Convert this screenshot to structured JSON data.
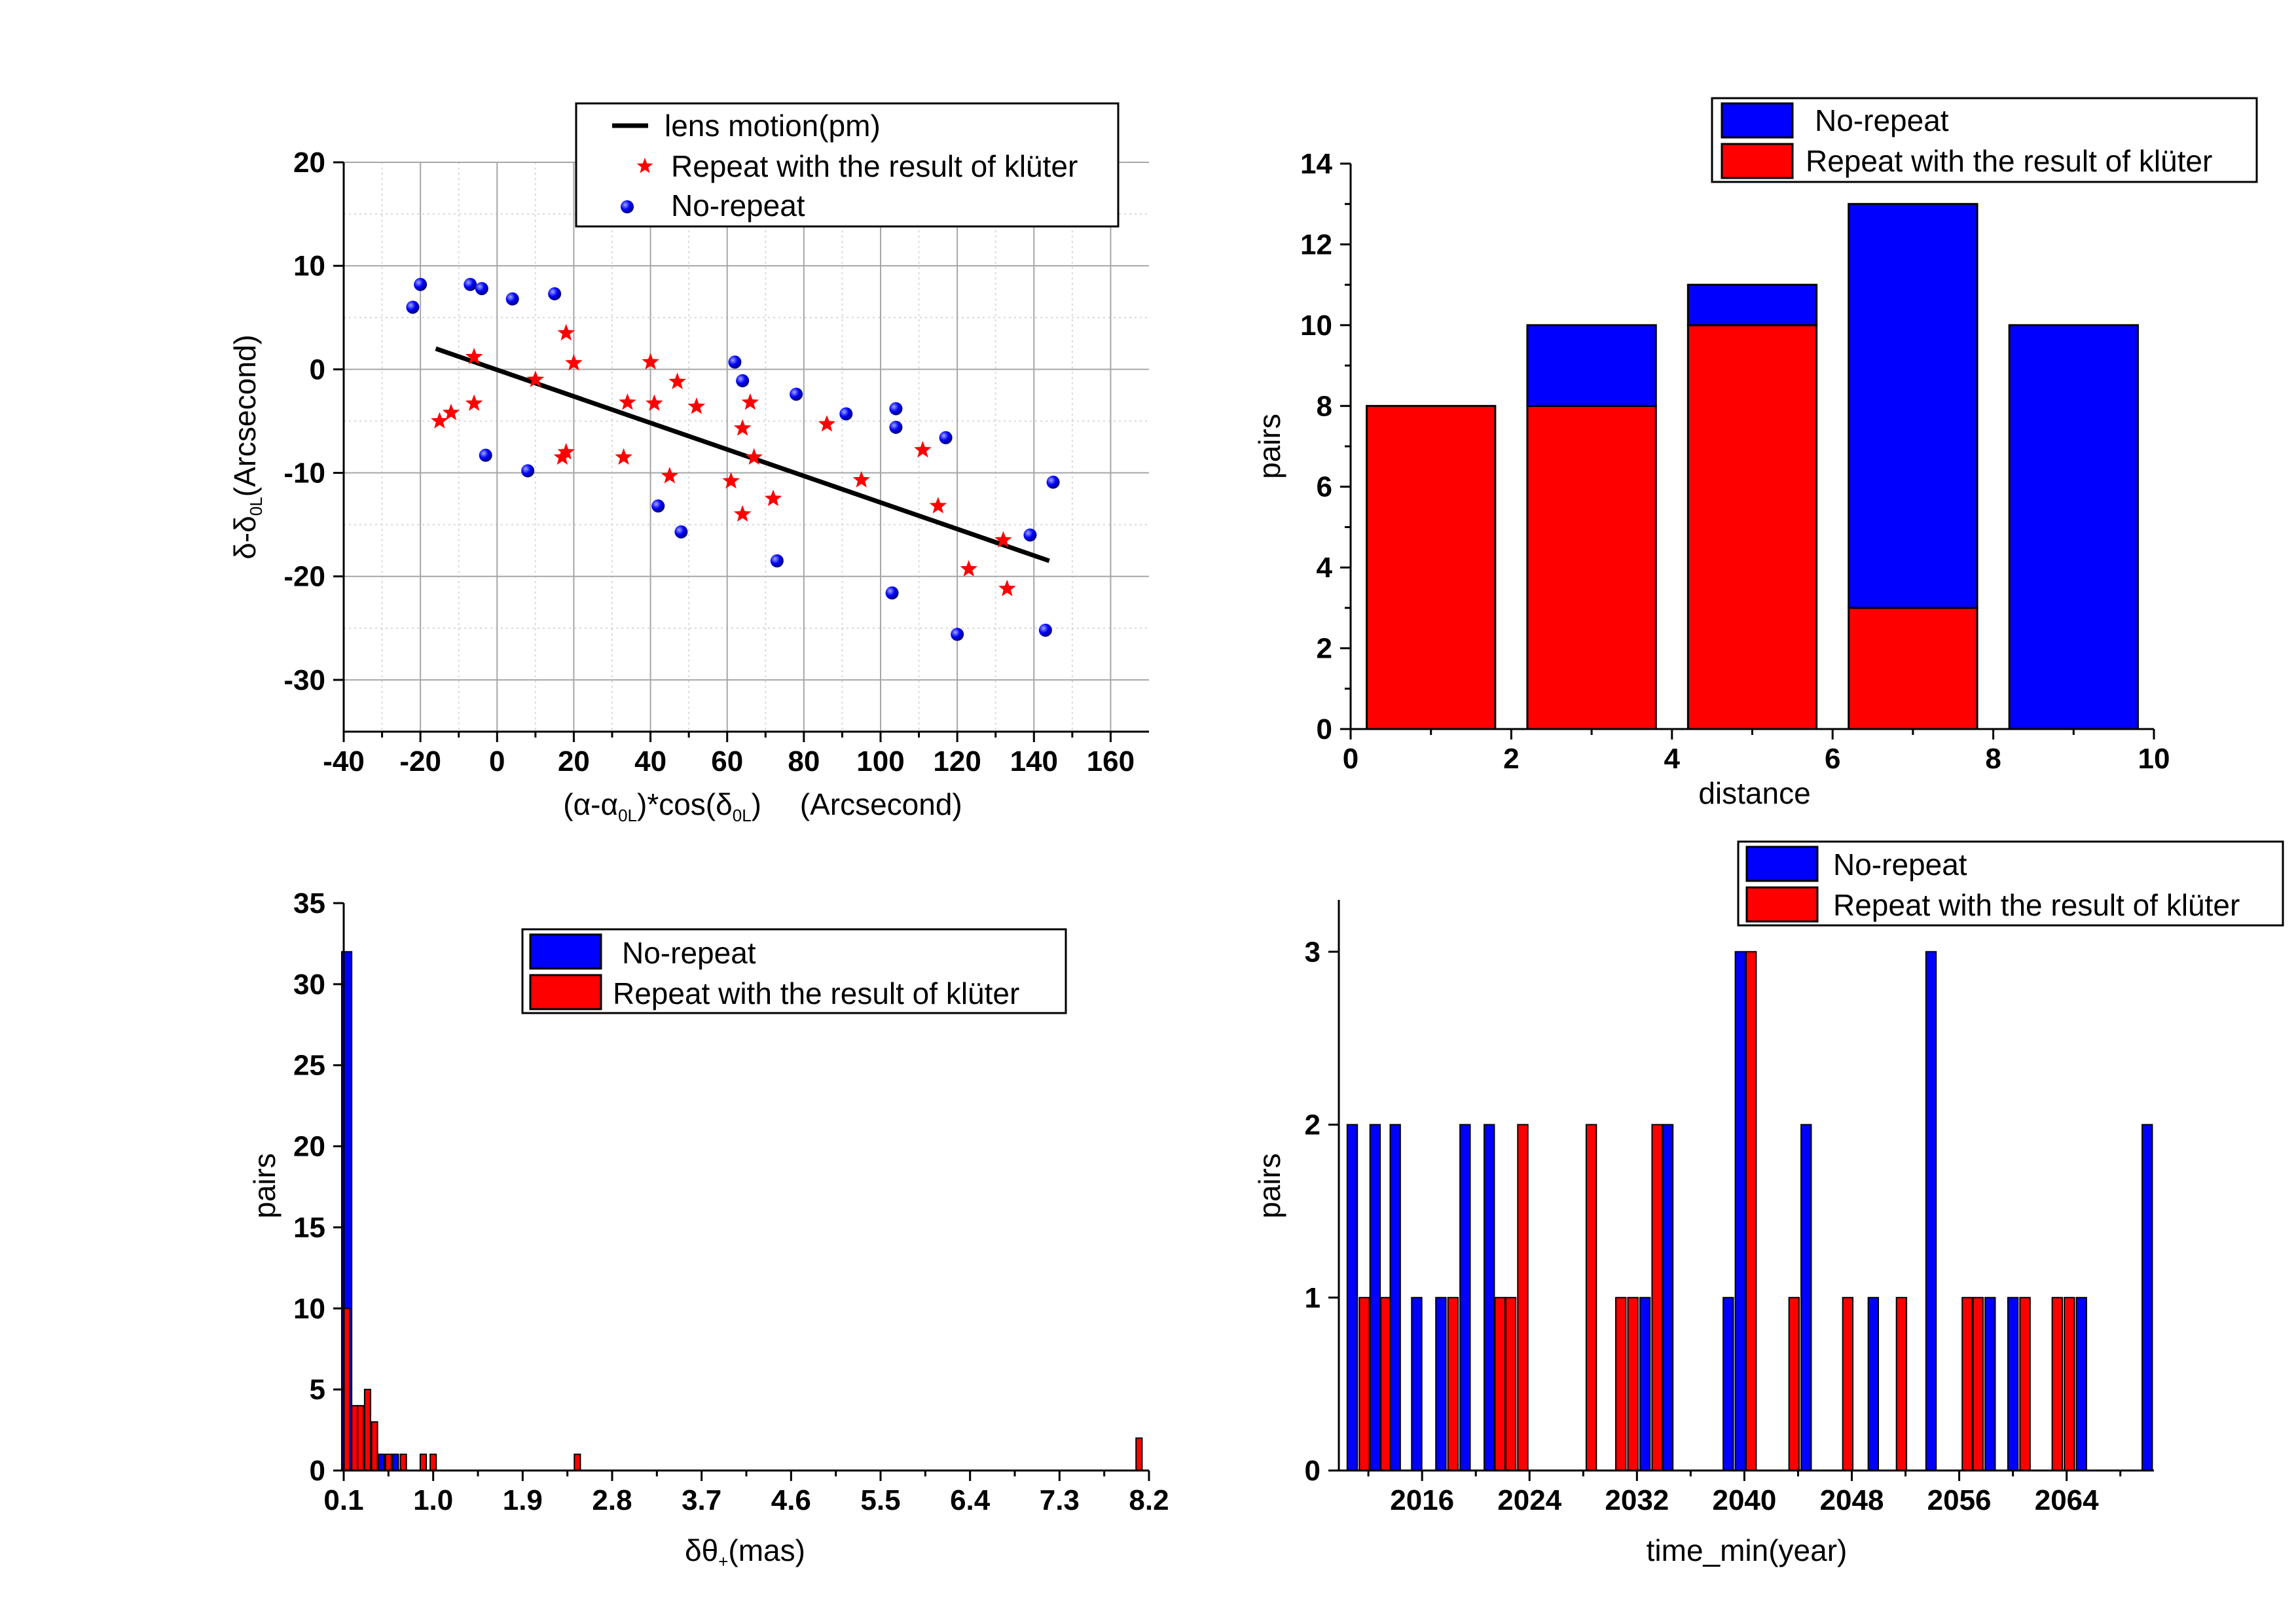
{
  "figure": {
    "panel_count": 4
  },
  "chart_data": [
    {
      "id": "scatter",
      "type": "scatter",
      "xlabel_parts": [
        "(α-α",
        "0L",
        ")*cos(δ",
        "0L",
        ")",
        "(Arcsecond)"
      ],
      "ylabel_parts": [
        "δ-δ",
        "0L",
        "(Arcsecond)"
      ],
      "xlim": [
        -40,
        170
      ],
      "ylim": [
        -35,
        20
      ],
      "xticks": [
        -40,
        -20,
        0,
        20,
        40,
        60,
        80,
        100,
        120,
        140,
        160
      ],
      "yticks": [
        20,
        10,
        0,
        -10,
        -20,
        -30
      ],
      "grid": true,
      "legend_position": "top-right",
      "legend": [
        "lens motion(pm)",
        "Repeat with the result of klüter",
        "No-repeat"
      ],
      "line": {
        "name": "lens motion(pm)",
        "x": [
          -16,
          144
        ],
        "y": [
          2,
          -18.5
        ],
        "color": "#000000"
      },
      "series": [
        {
          "name": "Repeat with the result of klüter",
          "marker": "star",
          "color": "#ff0000",
          "points": [
            [
              -15,
              -5
            ],
            [
              -12,
              -4.2
            ],
            [
              -6,
              1.2
            ],
            [
              -6,
              -3.3
            ],
            [
              10,
              -1
            ],
            [
              17,
              -8.5
            ],
            [
              18,
              3.5
            ],
            [
              18,
              -8
            ],
            [
              20,
              0.6
            ],
            [
              33,
              -8.5
            ],
            [
              34,
              -3.2
            ],
            [
              40,
              0.7
            ],
            [
              41,
              -3.3
            ],
            [
              45,
              -10.3
            ],
            [
              47,
              -1.2
            ],
            [
              52,
              -3.6
            ],
            [
              61,
              -10.8
            ],
            [
              64,
              -5.7
            ],
            [
              64,
              -14
            ],
            [
              66,
              -3.2
            ],
            [
              67,
              -8.5
            ],
            [
              72,
              -12.5
            ],
            [
              86,
              -5.3
            ],
            [
              95,
              -10.7
            ],
            [
              111,
              -7.8
            ],
            [
              115,
              -13.2
            ],
            [
              123,
              -19.3
            ],
            [
              132,
              -16.5
            ],
            [
              133,
              -21.2
            ]
          ]
        },
        {
          "name": "No-repeat",
          "marker": "sphere",
          "color": "#0000ff",
          "points": [
            [
              -22,
              6
            ],
            [
              -20,
              8.2
            ],
            [
              -7,
              8.2
            ],
            [
              -4,
              7.8
            ],
            [
              -3,
              -8.3
            ],
            [
              4,
              6.8
            ],
            [
              8,
              -9.8
            ],
            [
              15,
              7.3
            ],
            [
              42,
              -13.2
            ],
            [
              48,
              -15.7
            ],
            [
              62,
              0.7
            ],
            [
              64,
              -1.1
            ],
            [
              73,
              -18.5
            ],
            [
              78,
              -2.4
            ],
            [
              91,
              -4.3
            ],
            [
              103,
              -21.6
            ],
            [
              104,
              -3.8
            ],
            [
              104,
              -5.6
            ],
            [
              117,
              -6.6
            ],
            [
              120,
              -25.6
            ],
            [
              139,
              -16
            ],
            [
              143,
              -25.2
            ],
            [
              145,
              -10.9
            ]
          ]
        }
      ]
    },
    {
      "id": "distance",
      "type": "bar",
      "stacked": true,
      "xlabel": "distance",
      "ylabel": "pairs",
      "xlim": [
        0,
        10
      ],
      "ylim": [
        0,
        14
      ],
      "xticks": [
        0,
        2,
        4,
        6,
        8,
        10
      ],
      "yticks": [
        14,
        12,
        10,
        8,
        6,
        4,
        2,
        0
      ],
      "legend_position": "top-right",
      "legend": [
        "No-repeat",
        "Repeat with the result of klüter"
      ],
      "bin_width": 2,
      "bar_fill": 0.8,
      "categories": [
        1,
        3,
        5,
        7,
        9
      ],
      "series": [
        {
          "name": "Repeat with the result of klüter",
          "color": "#ff0000",
          "values": [
            8,
            8,
            10,
            3,
            0
          ]
        },
        {
          "name": "No-repeat",
          "color": "#0000ff",
          "values": [
            0,
            2,
            1,
            10,
            10
          ]
        }
      ]
    },
    {
      "id": "dtheta",
      "type": "bar",
      "stacked": false,
      "xlabel_parts": [
        "δθ",
        "+",
        "(mas)"
      ],
      "ylabel": "pairs",
      "xlim": [
        0.1,
        8.2
      ],
      "ylim": [
        0,
        35
      ],
      "xticks": [
        0.1,
        1.0,
        1.9,
        2.8,
        3.7,
        4.6,
        5.5,
        6.4,
        7.3,
        8.2
      ],
      "xtick_labels": [
        "0.1",
        "1.0",
        "1.9",
        "2.8",
        "3.7",
        "4.6",
        "5.5",
        "6.4",
        "7.3",
        "8.2"
      ],
      "yticks": [
        35,
        30,
        25,
        20,
        15,
        10,
        5,
        0
      ],
      "legend_position": "top-right",
      "legend": [
        "No-repeat",
        "Repeat with the result of klüter"
      ],
      "bars": [
        {
          "x": 0.13,
          "w": 0.1,
          "value": 32,
          "color": "#0000ff"
        },
        {
          "x": 0.13,
          "w": 0.06,
          "value": 10,
          "color": "#ff0000"
        },
        {
          "x": 0.21,
          "w": 0.06,
          "value": 4,
          "color": "#ff0000"
        },
        {
          "x": 0.27,
          "w": 0.06,
          "value": 4,
          "color": "#ff0000"
        },
        {
          "x": 0.34,
          "w": 0.06,
          "value": 5,
          "color": "#ff0000"
        },
        {
          "x": 0.41,
          "w": 0.06,
          "value": 3,
          "color": "#ff0000"
        },
        {
          "x": 0.48,
          "w": 0.06,
          "value": 1,
          "color": "#0000ff"
        },
        {
          "x": 0.55,
          "w": 0.06,
          "value": 1,
          "color": "#ff0000"
        },
        {
          "x": 0.62,
          "w": 0.06,
          "value": 1,
          "color": "#0000ff"
        },
        {
          "x": 0.7,
          "w": 0.06,
          "value": 1,
          "color": "#ff0000"
        },
        {
          "x": 0.9,
          "w": 0.06,
          "value": 1,
          "color": "#ff0000"
        },
        {
          "x": 1.0,
          "w": 0.06,
          "value": 1,
          "color": "#ff0000"
        },
        {
          "x": 2.45,
          "w": 0.06,
          "value": 1,
          "color": "#ff0000"
        },
        {
          "x": 8.1,
          "w": 0.06,
          "value": 2,
          "color": "#ff0000"
        }
      ]
    },
    {
      "id": "time",
      "type": "bar",
      "stacked": false,
      "xlabel": "time_min(year)",
      "ylabel": "pairs",
      "xlim": [
        2009.8,
        2070.5
      ],
      "ylim": [
        0,
        3.3
      ],
      "xticks": [
        2016,
        2024,
        2032,
        2040,
        2048,
        2056,
        2064
      ],
      "yticks": [
        3,
        2,
        1,
        0
      ],
      "legend_position": "top-right",
      "legend": [
        "No-repeat",
        "Repeat with the result of klüter"
      ],
      "bar_width": 0.75,
      "bars": [
        {
          "x": 2010.8,
          "value": 2,
          "color": "#0000ff"
        },
        {
          "x": 2011.7,
          "value": 1,
          "color": "#ff0000"
        },
        {
          "x": 2012.5,
          "value": 2,
          "color": "#0000ff"
        },
        {
          "x": 2013.3,
          "value": 1,
          "color": "#ff0000"
        },
        {
          "x": 2014.0,
          "value": 2,
          "color": "#0000ff"
        },
        {
          "x": 2015.6,
          "value": 1,
          "color": "#0000ff"
        },
        {
          "x": 2017.4,
          "value": 1,
          "color": "#0000ff"
        },
        {
          "x": 2018.3,
          "value": 1,
          "color": "#ff0000"
        },
        {
          "x": 2019.2,
          "value": 2,
          "color": "#0000ff"
        },
        {
          "x": 2021.0,
          "value": 2,
          "color": "#0000ff"
        },
        {
          "x": 2021.8,
          "value": 1,
          "color": "#ff0000"
        },
        {
          "x": 2022.6,
          "value": 1,
          "color": "#ff0000"
        },
        {
          "x": 2023.5,
          "value": 2,
          "color": "#ff0000"
        },
        {
          "x": 2028.6,
          "value": 2,
          "color": "#ff0000"
        },
        {
          "x": 2030.8,
          "value": 1,
          "color": "#ff0000"
        },
        {
          "x": 2031.7,
          "value": 1,
          "color": "#ff0000"
        },
        {
          "x": 2032.6,
          "value": 1,
          "color": "#0000ff"
        },
        {
          "x": 2033.5,
          "value": 2,
          "color": "#ff0000"
        },
        {
          "x": 2034.3,
          "value": 2,
          "color": "#0000ff"
        },
        {
          "x": 2038.8,
          "value": 1,
          "color": "#0000ff"
        },
        {
          "x": 2039.7,
          "value": 3,
          "color": "#0000ff"
        },
        {
          "x": 2040.5,
          "value": 3,
          "color": "#ff0000"
        },
        {
          "x": 2043.7,
          "value": 1,
          "color": "#ff0000"
        },
        {
          "x": 2044.6,
          "value": 2,
          "color": "#0000ff"
        },
        {
          "x": 2047.7,
          "value": 1,
          "color": "#ff0000"
        },
        {
          "x": 2049.6,
          "value": 1,
          "color": "#0000ff"
        },
        {
          "x": 2051.7,
          "value": 1,
          "color": "#ff0000"
        },
        {
          "x": 2053.9,
          "value": 3,
          "color": "#0000ff"
        },
        {
          "x": 2056.6,
          "value": 1,
          "color": "#ff0000"
        },
        {
          "x": 2057.4,
          "value": 1,
          "color": "#ff0000"
        },
        {
          "x": 2058.3,
          "value": 1,
          "color": "#0000ff"
        },
        {
          "x": 2060.0,
          "value": 1,
          "color": "#0000ff"
        },
        {
          "x": 2060.9,
          "value": 1,
          "color": "#ff0000"
        },
        {
          "x": 2063.3,
          "value": 1,
          "color": "#ff0000"
        },
        {
          "x": 2064.2,
          "value": 1,
          "color": "#ff0000"
        },
        {
          "x": 2065.1,
          "value": 1,
          "color": "#0000ff"
        },
        {
          "x": 2070.0,
          "value": 2,
          "color": "#0000ff"
        }
      ]
    }
  ]
}
